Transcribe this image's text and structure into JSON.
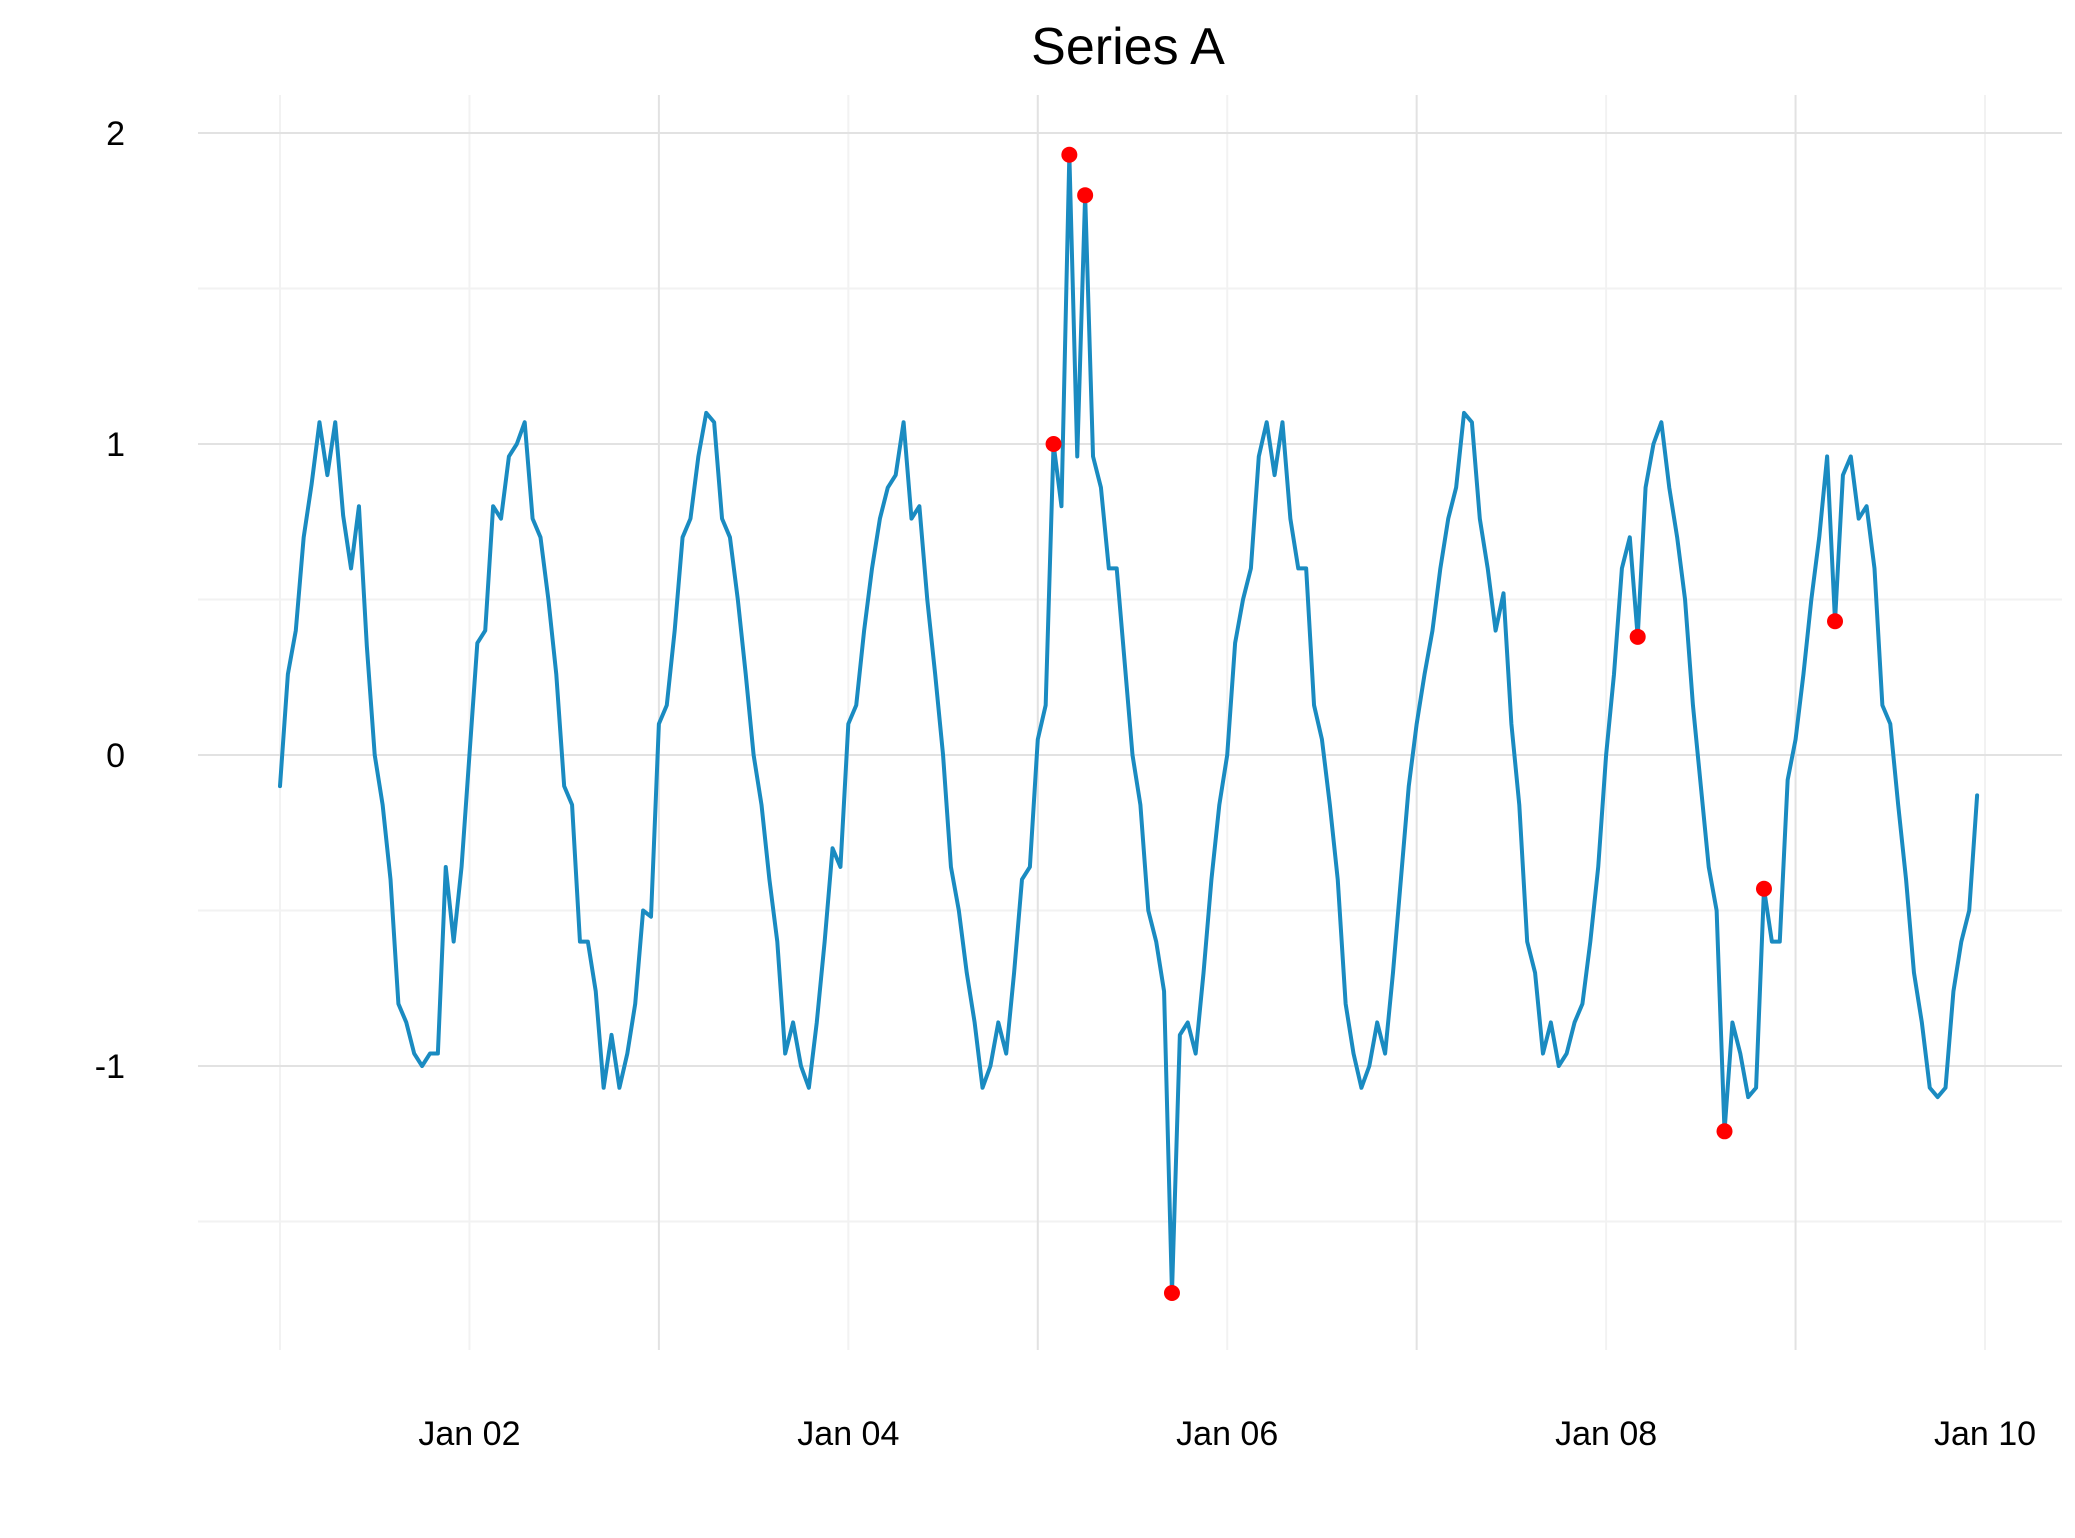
{
  "chart_data": {
    "type": "line",
    "title": "Series A",
    "xlabel": "",
    "ylabel": "",
    "x_start": "2024-01-01T00:00:00",
    "x_step_hours": 1,
    "xlim": [
      "2024-01-01T00:00:00",
      "2024-01-10T00:00:00"
    ],
    "ylim": [
      -1.75,
      2.05
    ],
    "x_ticks": [
      {
        "value": "2024-01-02",
        "label": "Jan 02"
      },
      {
        "value": "2024-01-04",
        "label": "Jan 04"
      },
      {
        "value": "2024-01-06",
        "label": "Jan 06"
      },
      {
        "value": "2024-01-08",
        "label": "Jan 08"
      },
      {
        "value": "2024-01-10",
        "label": "Jan 10"
      }
    ],
    "y_ticks": [
      {
        "value": 2,
        "label": "2"
      },
      {
        "value": 1,
        "label": "1"
      },
      {
        "value": 0,
        "label": "0"
      },
      {
        "value": -1,
        "label": "-1"
      }
    ],
    "grid": true,
    "legend": "none",
    "series": [
      {
        "color": "#1a8bc1",
        "values": [
          -0.1,
          0.26,
          0.4,
          0.7,
          0.87,
          1.07,
          0.9,
          1.07,
          0.77,
          0.6,
          0.8,
          0.35,
          0.0,
          -0.16,
          -0.4,
          -0.8,
          -0.86,
          -0.96,
          -1.0,
          -0.96,
          -0.96,
          -0.36,
          -0.6,
          -0.36,
          0.0,
          0.36,
          0.4,
          0.8,
          0.76,
          0.96,
          1.0,
          1.07,
          0.76,
          0.7,
          0.5,
          0.26,
          -0.1,
          -0.16,
          -0.6,
          -0.6,
          -0.76,
          -1.07,
          -0.9,
          -1.07,
          -0.96,
          -0.8,
          -0.5,
          -0.52,
          0.1,
          0.16,
          0.4,
          0.7,
          0.76,
          0.96,
          1.1,
          1.07,
          0.76,
          0.7,
          0.5,
          0.26,
          0.0,
          -0.16,
          -0.4,
          -0.6,
          -0.96,
          -0.86,
          -1.0,
          -1.07,
          -0.86,
          -0.6,
          -0.3,
          -0.36,
          0.1,
          0.16,
          0.4,
          0.6,
          0.76,
          0.86,
          0.9,
          1.07,
          0.76,
          0.8,
          0.5,
          0.26,
          0.0,
          -0.36,
          -0.5,
          -0.7,
          -0.86,
          -1.07,
          -1.0,
          -0.86,
          -0.96,
          -0.7,
          -0.4,
          -0.36,
          0.05,
          0.16,
          1.0,
          0.8,
          1.93,
          0.96,
          1.8,
          0.96,
          0.86,
          0.6,
          0.6,
          0.3,
          0.0,
          -0.16,
          -0.5,
          -0.6,
          -0.76,
          -1.73,
          -0.9,
          -0.86,
          -0.96,
          -0.7,
          -0.4,
          -0.16,
          0.0,
          0.36,
          0.5,
          0.6,
          0.96,
          1.07,
          0.9,
          1.07,
          0.76,
          0.6,
          0.6,
          0.16,
          0.05,
          -0.16,
          -0.4,
          -0.8,
          -0.96,
          -1.07,
          -1.0,
          -0.86,
          -0.96,
          -0.7,
          -0.4,
          -0.1,
          0.1,
          0.26,
          0.4,
          0.6,
          0.76,
          0.86,
          1.1,
          1.07,
          0.76,
          0.6,
          0.4,
          0.52,
          0.1,
          -0.16,
          -0.6,
          -0.7,
          -0.96,
          -0.86,
          -1.0,
          -0.96,
          -0.86,
          -0.8,
          -0.6,
          -0.36,
          0.0,
          0.26,
          0.6,
          0.7,
          0.38,
          0.86,
          1.0,
          1.07,
          0.86,
          0.7,
          0.5,
          0.16,
          -0.1,
          -0.36,
          -0.5,
          -1.21,
          -0.86,
          -0.96,
          -1.1,
          -1.07,
          -0.43,
          -0.6,
          -0.6,
          -0.08,
          0.05,
          0.26,
          0.5,
          0.7,
          0.96,
          0.43,
          0.9,
          0.96,
          0.76,
          0.8,
          0.6,
          0.16,
          0.1,
          -0.16,
          -0.4,
          -0.7,
          -0.86,
          -1.07,
          -1.1,
          -1.07,
          -0.76,
          -0.6,
          -0.5,
          -0.13
        ]
      }
    ],
    "highlighted_points": {
      "color": "#ff0000",
      "indices": [
        98,
        100,
        102,
        113,
        172,
        183,
        188,
        197
      ]
    }
  }
}
